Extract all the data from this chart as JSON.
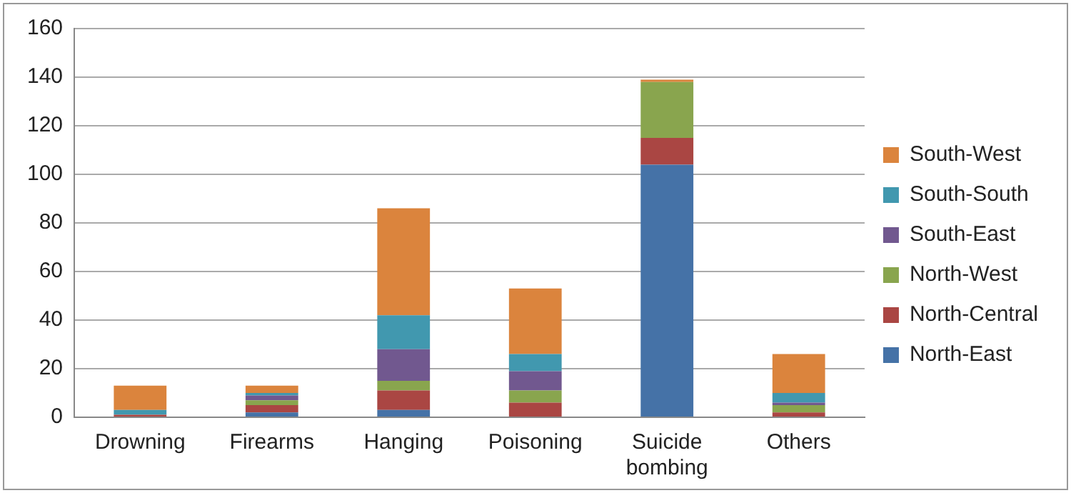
{
  "chart_data": {
    "type": "bar",
    "stacked": true,
    "categories": [
      "Drowning",
      "Firearms",
      "Hanging",
      "Poisoning",
      "Suicide bombing",
      "Others"
    ],
    "series": [
      {
        "name": "North-East",
        "color": "#4572a7",
        "values": [
          0,
          2,
          3,
          0,
          104,
          0
        ]
      },
      {
        "name": "North-Central",
        "color": "#aa4643",
        "values": [
          1,
          3,
          8,
          6,
          11,
          2
        ]
      },
      {
        "name": "North-West",
        "color": "#89a54e",
        "values": [
          0,
          2,
          4,
          5,
          23,
          3
        ]
      },
      {
        "name": "South-East",
        "color": "#71588f",
        "values": [
          0,
          2,
          13,
          8,
          0,
          1
        ]
      },
      {
        "name": "South-South",
        "color": "#4198af",
        "values": [
          2,
          1,
          14,
          7,
          0,
          4
        ]
      },
      {
        "name": "South-West",
        "color": "#db843d",
        "values": [
          10,
          3,
          44,
          27,
          1,
          16
        ]
      }
    ],
    "ylim": [
      0,
      160
    ],
    "yticks": [
      0,
      20,
      40,
      60,
      80,
      100,
      120,
      140,
      160
    ],
    "grid": "y",
    "legend": "right"
  }
}
